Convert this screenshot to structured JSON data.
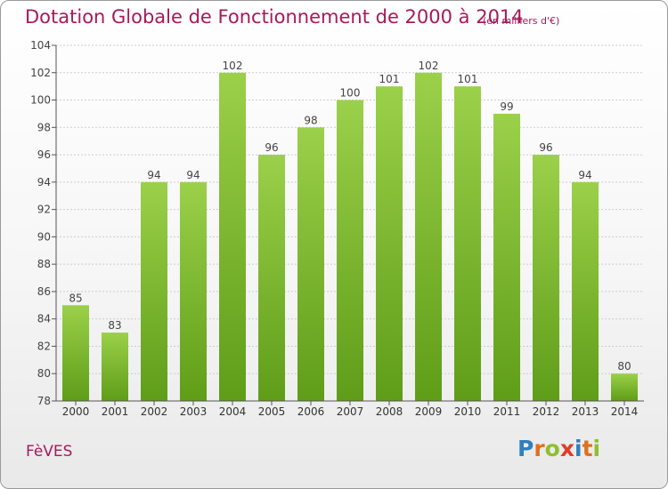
{
  "header": {
    "title": "Dotation Globale de Fonctionnement de 2000 à 2014",
    "unit": "(en milliers d'€)"
  },
  "footer": {
    "commune": "FèVES",
    "brand": "Proxiti",
    "brand_letters": [
      {
        "ch": "P",
        "color": "#2f7fc1"
      },
      {
        "ch": "r",
        "color": "#e0701f"
      },
      {
        "ch": "o",
        "color": "#8fbf2f"
      },
      {
        "ch": "x",
        "color": "#e23a2a"
      },
      {
        "ch": "i",
        "color": "#2f7fc1"
      },
      {
        "ch": "t",
        "color": "#e0701f"
      },
      {
        "ch": "i",
        "color": "#8fbf2f"
      }
    ]
  },
  "colors": {
    "title": "#a8195a",
    "bar_top": "#9bd04a",
    "bar_bottom": "#5f9d18",
    "axis": "#555555",
    "grid": "#cccccc"
  },
  "chart_data": {
    "type": "bar",
    "categories": [
      "2000",
      "2001",
      "2002",
      "2003",
      "2004",
      "2005",
      "2006",
      "2007",
      "2008",
      "2009",
      "2010",
      "2011",
      "2012",
      "2013",
      "2014"
    ],
    "values": [
      85,
      83,
      94,
      94,
      102,
      96,
      98,
      100,
      101,
      102,
      101,
      99,
      96,
      94,
      80
    ],
    "ylim": [
      78,
      104
    ],
    "yticks": [
      78,
      80,
      82,
      84,
      86,
      88,
      90,
      92,
      94,
      96,
      98,
      100,
      102,
      104
    ],
    "grid": true
  }
}
